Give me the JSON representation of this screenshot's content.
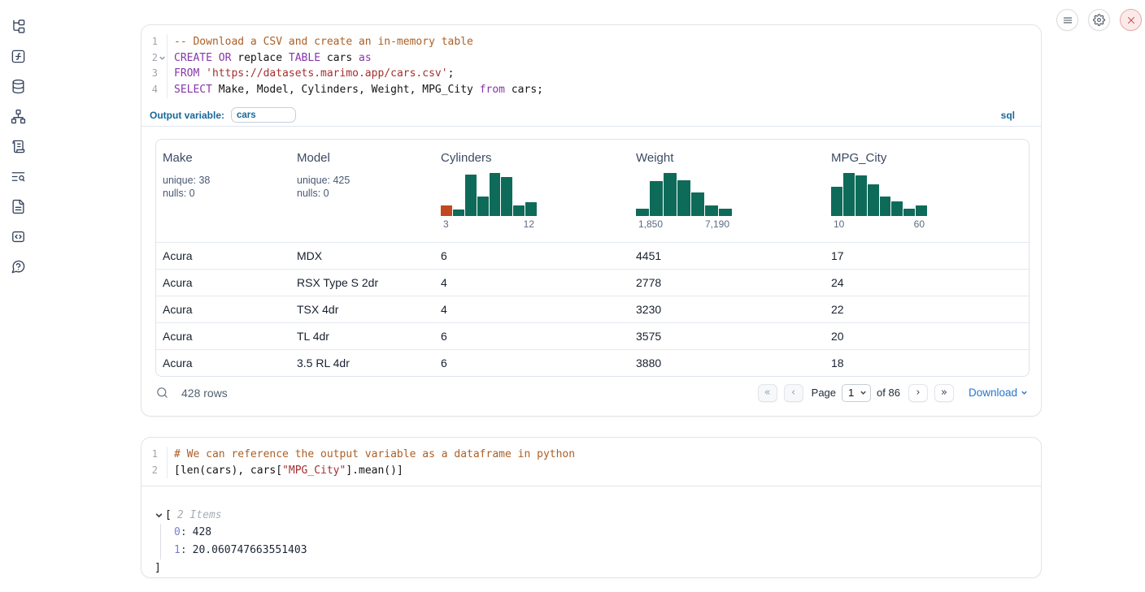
{
  "colors": {
    "keyword": "#8636a8",
    "comment": "#ab5f26",
    "string": "#a42f2f",
    "histogram_teal": "#0e6b59",
    "histogram_orange": "#c2481f",
    "link_blue": "#2478cf",
    "sql_accent": "#17689b"
  },
  "sidebar": {
    "icons": [
      "file-tree-icon",
      "function-icon",
      "database-icon",
      "dependency-graph-icon",
      "scroll-icon",
      "search-list-icon",
      "document-icon",
      "snippets-icon",
      "help-icon"
    ]
  },
  "topbar": {
    "icons": [
      "menu-icon",
      "gear-icon",
      "close-icon"
    ]
  },
  "cells": [
    {
      "type": "sql",
      "code": {
        "lines": [
          {
            "num": "1",
            "tokens": [
              {
                "text": "-- Download a CSV and create an in-memory table",
                "type": "comment"
              }
            ]
          },
          {
            "num": "2",
            "fold": true,
            "tokens": [
              {
                "text": "CREATE",
                "type": "keyword"
              },
              {
                "text": " ",
                "type": "plain"
              },
              {
                "text": "OR",
                "type": "keyword"
              },
              {
                "text": " replace ",
                "type": "plain"
              },
              {
                "text": "TABLE",
                "type": "keyword"
              },
              {
                "text": " cars ",
                "type": "plain"
              },
              {
                "text": "as",
                "type": "keyword"
              }
            ]
          },
          {
            "num": "3",
            "tokens": [
              {
                "text": "FROM",
                "type": "keyword"
              },
              {
                "text": " ",
                "type": "plain"
              },
              {
                "text": "'https://datasets.marimo.app/cars.csv'",
                "type": "string"
              },
              {
                "text": ";",
                "type": "plain"
              }
            ]
          },
          {
            "num": "4",
            "tokens": [
              {
                "text": "SELECT",
                "type": "keyword"
              },
              {
                "text": " Make, Model, Cylinders, Weight, MPG_City ",
                "type": "plain"
              },
              {
                "text": "from",
                "type": "keyword"
              },
              {
                "text": " cars;",
                "type": "plain"
              }
            ]
          }
        ]
      },
      "output_variable": {
        "label": "Output variable:",
        "value": "cars"
      },
      "language_badge": "sql",
      "table": {
        "columns": [
          {
            "name": "Make",
            "stats": [
              "unique: 38",
              "nulls: 0"
            ]
          },
          {
            "name": "Model",
            "stats": [
              "unique: 425",
              "nulls: 0"
            ]
          },
          {
            "name": "Cylinders",
            "histogram": {
              "heights": [
                0.24,
                0.14,
                0.96,
                0.44,
                1.0,
                0.9,
                0.24,
                0.32
              ],
              "bar_colors": [
                "#c2481f"
              ],
              "min_label": "3",
              "max_label": "12"
            }
          },
          {
            "name": "Weight",
            "histogram": {
              "heights": [
                0.16,
                0.8,
                1.0,
                0.82,
                0.55,
                0.24,
                0.16
              ],
              "min_label": "1,850",
              "max_label": "7,190"
            }
          },
          {
            "name": "MPG_City",
            "histogram": {
              "heights": [
                0.67,
                1.0,
                0.94,
                0.73,
                0.45,
                0.33,
                0.16,
                0.25
              ],
              "min_label": "10",
              "max_label": "60"
            }
          }
        ],
        "rows": [
          [
            "Acura",
            "MDX",
            "6",
            "4451",
            "17"
          ],
          [
            "Acura",
            "RSX Type S 2dr",
            "4",
            "2778",
            "24"
          ],
          [
            "Acura",
            "TSX 4dr",
            "4",
            "3230",
            "22"
          ],
          [
            "Acura",
            "TL 4dr",
            "6",
            "3575",
            "20"
          ],
          [
            "Acura",
            "3.5 RL 4dr",
            "6",
            "3880",
            "18"
          ]
        ],
        "footer": {
          "row_count": "428 rows",
          "page_label": "Page",
          "page_value": "1",
          "page_options": [
            "1"
          ],
          "of_label": "of 86",
          "download_label": "Download"
        }
      }
    },
    {
      "type": "python",
      "code": {
        "lines": [
          {
            "num": "1",
            "tokens": [
              {
                "text": "# We can reference the output variable as a dataframe in python",
                "type": "comment"
              }
            ]
          },
          {
            "num": "2",
            "tokens": [
              {
                "text": "[len(cars), cars[",
                "type": "plain"
              },
              {
                "text": "\"MPG_City\"",
                "type": "string"
              },
              {
                "text": "].mean()]",
                "type": "plain"
              }
            ]
          }
        ]
      },
      "output_tree": {
        "open_bracket": "[",
        "count_label": "2 Items",
        "entries": [
          {
            "index": "0",
            "value": "428"
          },
          {
            "index": "1",
            "value": "20.060747663551403"
          }
        ],
        "close_bracket": "]"
      }
    }
  ]
}
